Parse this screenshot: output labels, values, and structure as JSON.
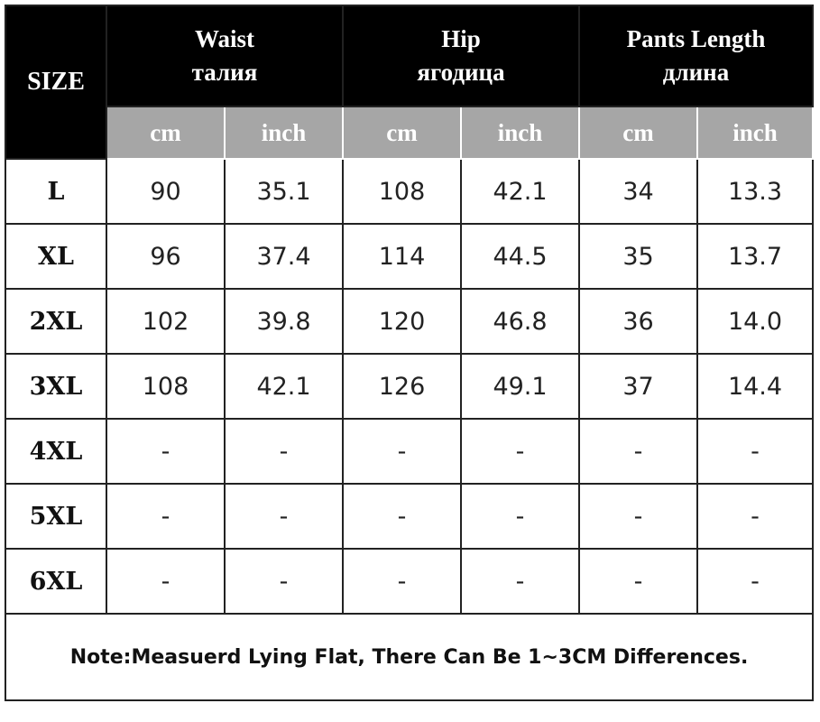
{
  "table": {
    "size_header": "SIZE",
    "groups": [
      {
        "en": "Waist",
        "ru": "талия"
      },
      {
        "en": "Hip",
        "ru": "ягодица"
      },
      {
        "en": "Pants Length",
        "ru": "длина"
      }
    ],
    "units": [
      "cm",
      "inch",
      "cm",
      "inch",
      "cm",
      "inch"
    ],
    "rows": [
      {
        "size": "L",
        "values": [
          "90",
          "35.1",
          "108",
          "42.1",
          "34",
          "13.3"
        ]
      },
      {
        "size": "XL",
        "values": [
          "96",
          "37.4",
          "114",
          "44.5",
          "35",
          "13.7"
        ]
      },
      {
        "size": "2XL",
        "values": [
          "102",
          "39.8",
          "120",
          "46.8",
          "36",
          "14.0"
        ]
      },
      {
        "size": "3XL",
        "values": [
          "108",
          "42.1",
          "126",
          "49.1",
          "37",
          "14.4"
        ]
      },
      {
        "size": "4XL",
        "values": [
          "-",
          "-",
          "-",
          "-",
          "-",
          "-"
        ]
      },
      {
        "size": "5XL",
        "values": [
          "-",
          "-",
          "-",
          "-",
          "-",
          "-"
        ]
      },
      {
        "size": "6XL",
        "values": [
          "-",
          "-",
          "-",
          "-",
          "-",
          "-"
        ]
      }
    ],
    "note": "Note:Measuerd Lying Flat, There Can Be 1~3CM Differences."
  },
  "colors": {
    "header_bg": "#000000",
    "unit_bg": "#a6a6a6",
    "border": "#222222"
  }
}
